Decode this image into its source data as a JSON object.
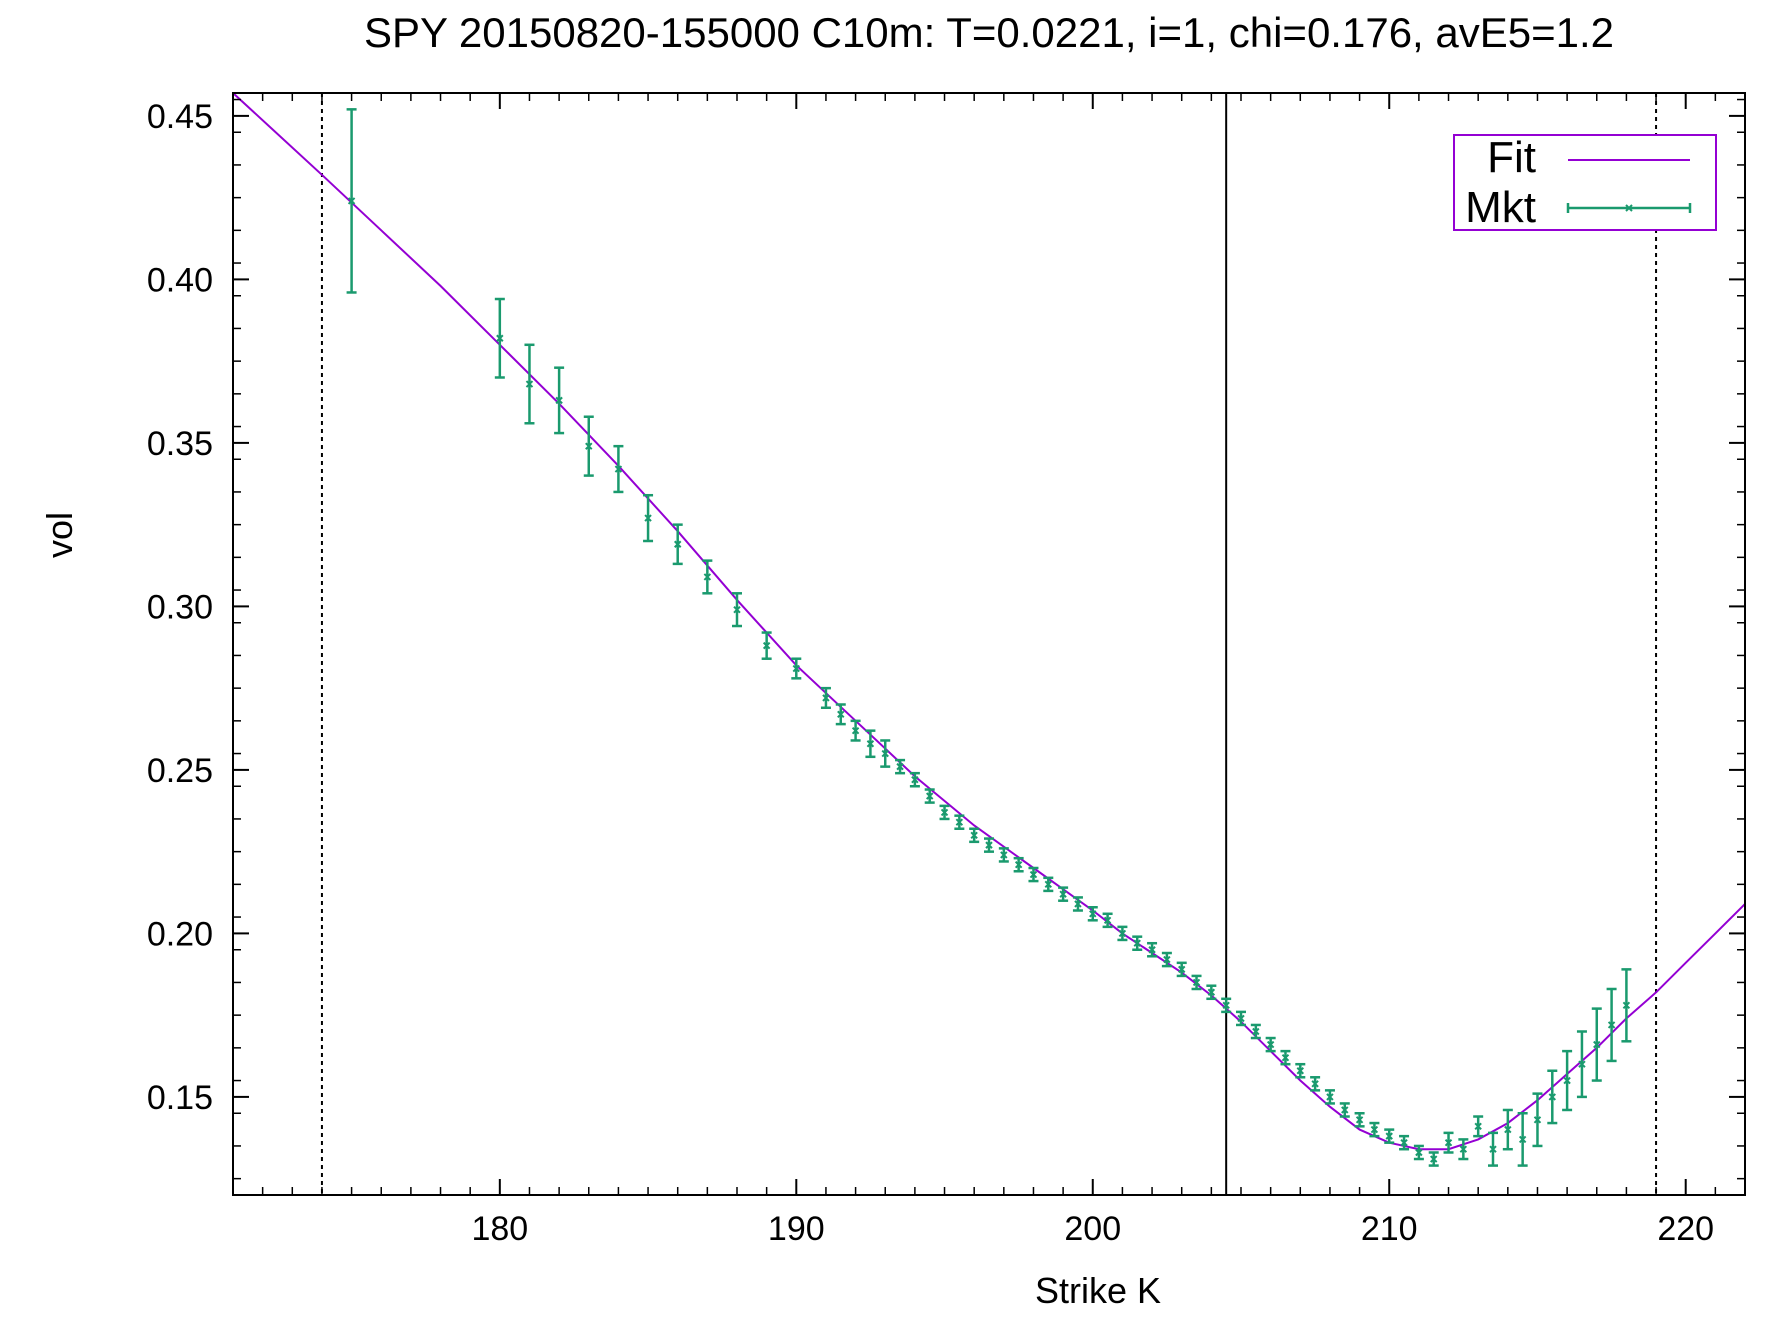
{
  "chart_data": {
    "type": "scatter",
    "title": "SPY 20150820-155000  C10m:  T=0.0221, i=1, chi=0.176, avE5=1.2",
    "xlabel": "Strike K",
    "ylabel": "vol",
    "xlim": [
      171,
      222
    ],
    "ylim": [
      0.12,
      0.457
    ],
    "x_ticks": [
      180,
      190,
      200,
      210,
      220
    ],
    "x_tick_labels": [
      "180",
      "190",
      "200",
      "210",
      "220"
    ],
    "y_ticks": [
      0.15,
      0.2,
      0.25,
      0.3,
      0.35,
      0.4,
      0.45
    ],
    "y_tick_labels": [
      "0.15",
      "0.20",
      "0.25",
      "0.30",
      "0.35",
      "0.40",
      "0.45"
    ],
    "grid": false,
    "legend_position": "top-right",
    "vertical_lines": [
      {
        "x": 174,
        "style": "dotted"
      },
      {
        "x": 204.5,
        "style": "solid"
      },
      {
        "x": 219,
        "style": "dotted"
      }
    ],
    "series": [
      {
        "name": "Fit",
        "type": "line",
        "color": "#9400d3",
        "x": [
          171,
          174,
          176,
          178,
          180,
          182,
          184,
          186,
          188,
          190,
          192,
          194,
          196,
          198,
          200,
          201,
          202,
          203,
          204,
          205,
          206,
          207,
          208,
          209,
          210,
          211,
          211.5,
          212,
          213,
          214,
          215,
          216,
          217,
          218,
          219,
          220,
          221,
          222
        ],
        "y": [
          0.457,
          0.432,
          0.415,
          0.398,
          0.38,
          0.362,
          0.343,
          0.323,
          0.302,
          0.282,
          0.265,
          0.248,
          0.233,
          0.22,
          0.207,
          0.2,
          0.194,
          0.188,
          0.181,
          0.173,
          0.164,
          0.155,
          0.147,
          0.14,
          0.136,
          0.134,
          0.134,
          0.134,
          0.137,
          0.142,
          0.149,
          0.157,
          0.165,
          0.174,
          0.182,
          0.191,
          0.2,
          0.209
        ]
      },
      {
        "name": "Mkt",
        "type": "errorbar",
        "color": "#1a9a6e",
        "x": [
          175,
          180,
          181,
          182,
          183,
          184,
          185,
          186,
          187,
          188,
          189,
          190,
          191,
          191.5,
          192,
          192.5,
          193,
          193.5,
          194,
          194.5,
          195,
          195.5,
          196,
          196.5,
          197,
          197.5,
          198,
          198.5,
          199,
          199.5,
          200,
          200.5,
          201,
          201.5,
          202,
          202.5,
          203,
          203.5,
          204,
          204.5,
          205,
          205.5,
          206,
          206.5,
          207,
          207.5,
          208,
          208.5,
          209,
          209.5,
          210,
          210.5,
          211,
          211.5,
          212,
          212.5,
          213,
          213.5,
          214,
          214.5,
          215,
          215.5,
          216,
          216.5,
          217,
          217.5,
          218
        ],
        "y": [
          0.424,
          0.382,
          0.368,
          0.363,
          0.349,
          0.342,
          0.327,
          0.319,
          0.309,
          0.299,
          0.288,
          0.281,
          0.272,
          0.267,
          0.262,
          0.258,
          0.255,
          0.251,
          0.247,
          0.242,
          0.237,
          0.234,
          0.23,
          0.227,
          0.224,
          0.221,
          0.218,
          0.215,
          0.212,
          0.209,
          0.206,
          0.204,
          0.2,
          0.197,
          0.195,
          0.192,
          0.189,
          0.185,
          0.182,
          0.178,
          0.174,
          0.17,
          0.166,
          0.162,
          0.158,
          0.154,
          0.15,
          0.146,
          0.143,
          0.14,
          0.138,
          0.136,
          0.133,
          0.131,
          0.136,
          0.134,
          0.141,
          0.134,
          0.14,
          0.137,
          0.143,
          0.15,
          0.155,
          0.16,
          0.166,
          0.172,
          0.178
        ],
        "err": [
          0.028,
          0.012,
          0.012,
          0.01,
          0.009,
          0.007,
          0.007,
          0.006,
          0.005,
          0.005,
          0.004,
          0.003,
          0.003,
          0.003,
          0.003,
          0.004,
          0.004,
          0.002,
          0.002,
          0.002,
          0.002,
          0.002,
          0.002,
          0.002,
          0.002,
          0.002,
          0.002,
          0.002,
          0.002,
          0.002,
          0.002,
          0.002,
          0.002,
          0.002,
          0.002,
          0.002,
          0.002,
          0.002,
          0.002,
          0.002,
          0.002,
          0.002,
          0.002,
          0.002,
          0.002,
          0.002,
          0.002,
          0.002,
          0.002,
          0.002,
          0.002,
          0.002,
          0.002,
          0.002,
          0.003,
          0.003,
          0.003,
          0.005,
          0.006,
          0.008,
          0.008,
          0.008,
          0.009,
          0.01,
          0.011,
          0.011,
          0.011
        ]
      }
    ]
  }
}
